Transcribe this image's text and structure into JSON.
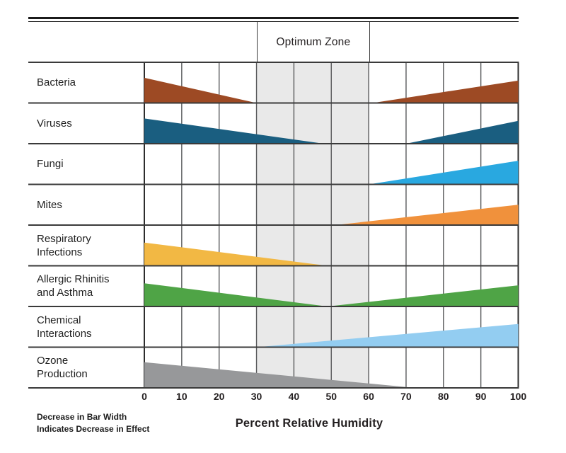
{
  "chart_data": {
    "type": "area",
    "title": "",
    "xlabel": "Percent Relative Humidity",
    "xlim": [
      0,
      100
    ],
    "x_ticks": [
      0,
      10,
      20,
      30,
      40,
      50,
      60,
      70,
      80,
      90,
      100
    ],
    "grid": true,
    "zone": {
      "label": "Optimum Zone",
      "from": 30,
      "to": 60,
      "fill": "#e9e9e9"
    },
    "note": [
      "Decrease in Bar Width",
      "Indicates Decrease in Effect"
    ],
    "rows": [
      {
        "label": "Bacteria",
        "label_lines": [
          "Bacteria"
        ],
        "color": "#9d4a24",
        "segments": [
          {
            "x_range": [
              0,
              30
            ],
            "effect_height_pct": [
              62,
              0
            ]
          },
          {
            "x_range": [
              61,
              100
            ],
            "effect_height_pct": [
              0,
              55
            ]
          }
        ]
      },
      {
        "label": "Viruses",
        "label_lines": [
          "Viruses"
        ],
        "color": "#1a5e80",
        "segments": [
          {
            "x_range": [
              0,
              48
            ],
            "effect_height_pct": [
              62,
              0
            ]
          },
          {
            "x_range": [
              70,
              100
            ],
            "effect_height_pct": [
              0,
              56
            ]
          }
        ]
      },
      {
        "label": "Fungi",
        "label_lines": [
          "Fungi"
        ],
        "color": "#29a8e0",
        "segments": [
          {
            "x_range": [
              60,
              100
            ],
            "effect_height_pct": [
              0,
              58
            ]
          }
        ]
      },
      {
        "label": "Mites",
        "label_lines": [
          "Mites"
        ],
        "color": "#f0913c",
        "segments": [
          {
            "x_range": [
              51,
              100
            ],
            "effect_height_pct": [
              0,
              50
            ]
          }
        ]
      },
      {
        "label": "Respiratory Infections",
        "label_lines": [
          "Respiratory",
          "Infections"
        ],
        "color": "#f2b844",
        "segments": [
          {
            "x_range": [
              0,
              49
            ],
            "effect_height_pct": [
              57,
              0
            ]
          }
        ]
      },
      {
        "label": "Allergic Rhinitis and Asthma",
        "label_lines": [
          "Allergic Rhinitis",
          "and Asthma"
        ],
        "color": "#4fa446",
        "segments": [
          {
            "x_range": [
              0,
              49
            ],
            "effect_height_pct": [
              57,
              0
            ]
          },
          {
            "x_range": [
              49,
              100
            ],
            "effect_height_pct": [
              0,
              52
            ]
          }
        ]
      },
      {
        "label": "Chemical Interactions",
        "label_lines": [
          "Chemical",
          "Interactions"
        ],
        "color": "#93cdf1",
        "segments": [
          {
            "x_range": [
              30,
              100
            ],
            "effect_height_pct": [
              0,
              57
            ]
          }
        ]
      },
      {
        "label": "Ozone Production",
        "label_lines": [
          "Ozone",
          "Production"
        ],
        "color": "#97989a",
        "segments": [
          {
            "x_range": [
              0,
              72.5
            ],
            "effect_height_pct": [
              63,
              0
            ]
          }
        ]
      }
    ]
  }
}
